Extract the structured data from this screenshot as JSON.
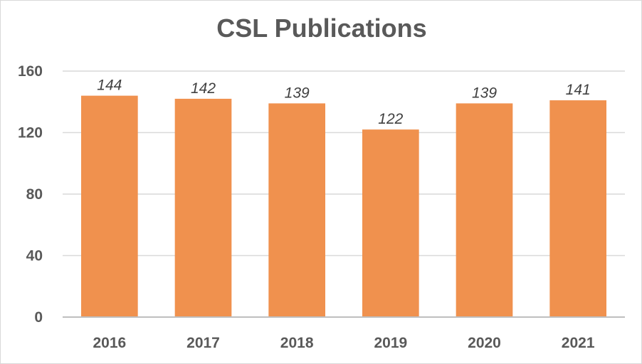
{
  "chart_data": {
    "type": "bar",
    "title": "CSL Publications",
    "categories": [
      "2016",
      "2017",
      "2018",
      "2019",
      "2020",
      "2021"
    ],
    "values": [
      144,
      142,
      139,
      122,
      139,
      141
    ],
    "data_labels": [
      "144",
      "142",
      "139",
      "122",
      "139",
      "141"
    ],
    "y_ticks": [
      "0",
      "40",
      "80",
      "120",
      "160"
    ],
    "ylim": [
      0,
      160
    ],
    "grid": true,
    "legend": "none",
    "xlabel": "",
    "ylabel": "",
    "bar_color": "#f0914e",
    "grid_color": "#d9d9d9",
    "axis_color": "#bfbfbf"
  }
}
